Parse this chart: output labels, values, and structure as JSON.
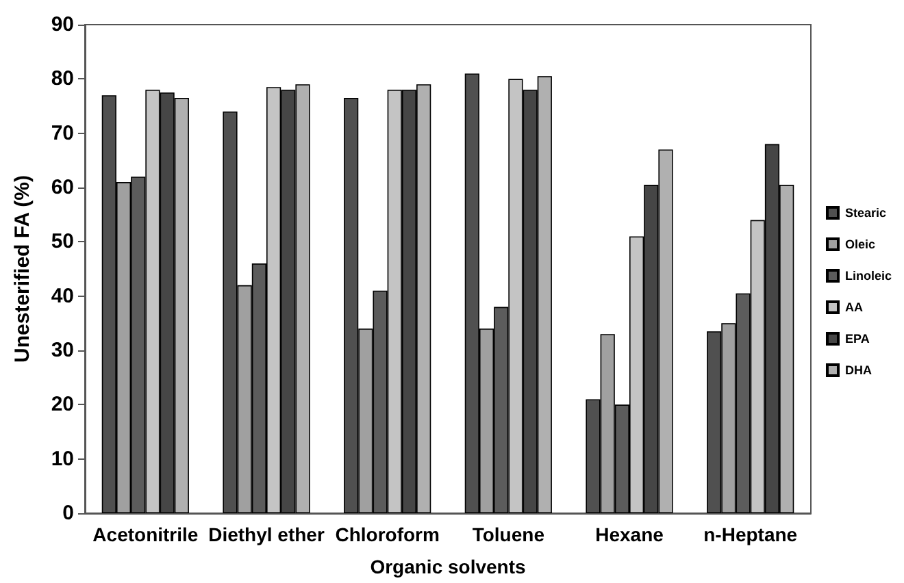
{
  "chart_data": {
    "type": "bar",
    "xlabel": "Organic solvents",
    "ylabel": "Unesterified FA (%)",
    "categories": [
      "Acetonitrile",
      "Diethyl ether",
      "Chloroform",
      "Toluene",
      "Hexane",
      "n-Heptane"
    ],
    "series": [
      {
        "name": "Stearic",
        "color": "#505050",
        "values": [
          77,
          74,
          76.5,
          81,
          21,
          33.5
        ]
      },
      {
        "name": "Oleic",
        "color": "#a0a0a0",
        "values": [
          61,
          42,
          34,
          34,
          33,
          35
        ]
      },
      {
        "name": "Linoleic",
        "color": "#5c5c5c",
        "values": [
          62,
          46,
          41,
          38,
          20,
          40.5
        ]
      },
      {
        "name": "AA",
        "color": "#c4c4c4",
        "values": [
          78,
          78.5,
          78,
          80,
          51,
          54
        ]
      },
      {
        "name": "EPA",
        "color": "#464646",
        "values": [
          77.5,
          78,
          78,
          78,
          60.5,
          68
        ]
      },
      {
        "name": "DHA",
        "color": "#b0b0b0",
        "values": [
          76.5,
          79,
          79,
          80.5,
          67,
          60.5
        ]
      }
    ],
    "ylim": [
      0,
      90
    ],
    "yticks": [
      0,
      10,
      20,
      30,
      40,
      50,
      60,
      70,
      80,
      90
    ],
    "grid": false,
    "legend": "right"
  }
}
